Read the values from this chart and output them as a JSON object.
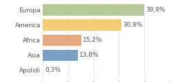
{
  "categories": [
    "Europa",
    "America",
    "Africa",
    "Asia",
    "Apolidi"
  ],
  "values": [
    39.9,
    30.9,
    15.2,
    13.8,
    0.3
  ],
  "labels": [
    "39,9%",
    "30,9%",
    "15,2%",
    "13,8%",
    "0,3%"
  ],
  "bar_colors": [
    "#b5c99a",
    "#f5cd79",
    "#e8a97e",
    "#7b9fc4",
    "#e8e8e8"
  ],
  "background_color": "#ffffff",
  "xlim": [
    0,
    50
  ],
  "label_fontsize": 6.5,
  "tick_fontsize": 6.5,
  "bar_height": 0.75
}
